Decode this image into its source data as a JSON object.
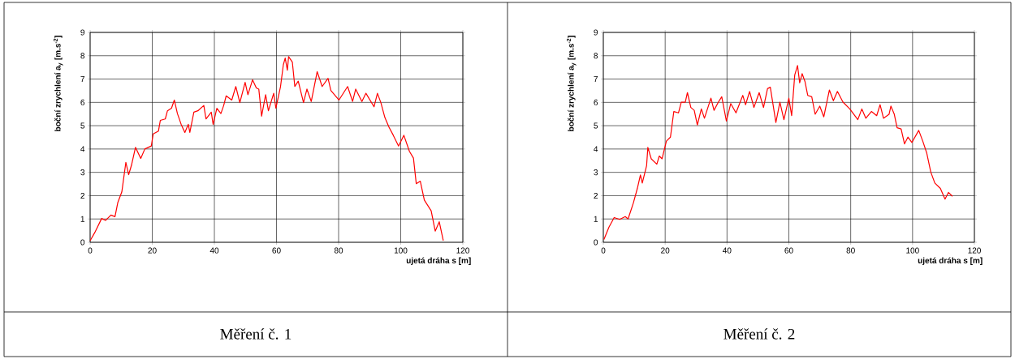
{
  "chart_data": [
    {
      "type": "line",
      "ylabel": "boční zrychlení a$_{y}$  [m.s$^{-2}$]",
      "xlabel": "ujetá dráha s [m]",
      "color": "#ff0000",
      "xlim": [
        0,
        120
      ],
      "ylim": [
        0,
        9
      ],
      "xticks": [
        0,
        20,
        40,
        60,
        80,
        100,
        120
      ],
      "yticks": [
        0,
        1,
        2,
        3,
        4,
        5,
        6,
        7,
        8,
        9
      ],
      "grid": true,
      "annotations": [
        "Měření č. 1"
      ],
      "x": [
        0,
        1.5,
        3.7,
        5,
        6.7,
        8,
        8.9,
        10.2,
        11.5,
        12.4,
        13.3,
        14.6,
        16.3,
        17.6,
        19.7,
        20.3,
        22,
        22.6,
        24.2,
        24.9,
        26.2,
        27.1,
        28.1,
        29.3,
        30.5,
        31.6,
        32.1,
        33.4,
        34.7,
        36.6,
        37.3,
        39,
        39.6,
        40.8,
        42.1,
        43,
        43.8,
        45.6,
        46.9,
        48.2,
        49.9,
        50.8,
        52.3,
        53.5,
        54.3,
        55.2,
        56.5,
        57.4,
        59.1,
        59.8,
        61.3,
        62.2,
        62.8,
        63.5,
        63.9,
        65.1,
        65.9,
        67,
        68.7,
        69.8,
        71.2,
        73.1,
        74.7,
        76.6,
        77.5,
        80.1,
        82.9,
        84.5,
        85.5,
        87.5,
        88.8,
        91.4,
        92.5,
        93.6,
        94.9,
        96.2,
        97.6,
        99.3,
        101,
        102.8,
        104.1,
        105,
        106.3,
        107.6,
        109.8,
        111.1,
        112.4,
        113.7
      ],
      "values": [
        0.07,
        0.42,
        1.02,
        0.94,
        1.17,
        1.1,
        1.7,
        2.16,
        3.43,
        2.9,
        3.3,
        4.07,
        3.6,
        4.0,
        4.13,
        4.65,
        4.77,
        5.23,
        5.29,
        5.64,
        5.75,
        6.1,
        5.52,
        5.06,
        4.71,
        5.06,
        4.71,
        5.58,
        5.64,
        5.87,
        5.29,
        5.58,
        5.06,
        5.75,
        5.52,
        5.87,
        6.28,
        6.1,
        6.68,
        5.99,
        6.86,
        6.33,
        6.97,
        6.62,
        6.57,
        5.41,
        6.33,
        5.64,
        6.39,
        5.75,
        6.68,
        7.61,
        7.9,
        7.38,
        7.96,
        7.73,
        6.68,
        6.91,
        5.99,
        6.57,
        6.04,
        7.32,
        6.68,
        7.03,
        6.51,
        6.1,
        6.68,
        6.04,
        6.57,
        6.04,
        6.39,
        5.81,
        6.39,
        5.99,
        5.35,
        4.94,
        4.59,
        4.13,
        4.59,
        3.9,
        3.61,
        2.51,
        2.62,
        1.81,
        1.35,
        0.48,
        0.88,
        0.07
      ]
    },
    {
      "type": "line",
      "ylabel": "boční zrychlení a$_{y}$  [m.s$^{-2}$]",
      "xlabel": "ujetá dráha s [m]",
      "color": "#ff0000",
      "xlim": [
        0,
        120
      ],
      "ylim": [
        0,
        9
      ],
      "xticks": [
        0,
        20,
        40,
        60,
        80,
        100,
        120
      ],
      "yticks": [
        0,
        1,
        2,
        3,
        4,
        5,
        6,
        7,
        8,
        9
      ],
      "grid": true,
      "annotations": [
        "Měření č. 2"
      ],
      "x": [
        0.2,
        1.8,
        3.5,
        5.3,
        7.1,
        8,
        9.7,
        11,
        12,
        12.6,
        14,
        14.4,
        15.5,
        17.3,
        18.1,
        19,
        20.4,
        21.7,
        22.8,
        24.3,
        25.2,
        26.5,
        27.2,
        28.3,
        29.4,
        30.4,
        31.7,
        32.7,
        34.8,
        35.8,
        37.2,
        38.3,
        39.8,
        41.2,
        42.9,
        45.1,
        46,
        47.3,
        48.7,
        50.4,
        51.8,
        53.1,
        54,
        55.8,
        57.1,
        58.4,
        60,
        60.9,
        61.9,
        62.8,
        63.5,
        64.3,
        65.2,
        66.1,
        67.4,
        68.5,
        70,
        71.3,
        73.1,
        74.4,
        75.7,
        77.5,
        79.7,
        82.3,
        83.6,
        84.9,
        86.7,
        88.4,
        89.5,
        90.6,
        92.4,
        93,
        94.1,
        95,
        96.3,
        97.4,
        98.5,
        99.8,
        102,
        103.3,
        104.6,
        105.9,
        107.2,
        109,
        110.5,
        111.6,
        112.9
      ],
      "values": [
        0.12,
        0.64,
        1.06,
        0.98,
        1.1,
        1.0,
        1.68,
        2.31,
        2.89,
        2.54,
        3.29,
        4.07,
        3.58,
        3.35,
        3.7,
        3.58,
        4.34,
        4.51,
        5.61,
        5.55,
        6.01,
        6.01,
        6.42,
        5.78,
        5.66,
        5.03,
        5.72,
        5.32,
        6.18,
        5.66,
        6.01,
        6.24,
        5.2,
        5.95,
        5.55,
        6.3,
        5.9,
        6.47,
        5.78,
        6.42,
        5.78,
        6.59,
        6.65,
        5.14,
        6.01,
        5.26,
        6.18,
        5.43,
        7.17,
        7.58,
        6.84,
        7.23,
        6.9,
        6.3,
        6.24,
        5.49,
        5.84,
        5.38,
        6.53,
        6.07,
        6.47,
        6.01,
        5.72,
        5.26,
        5.72,
        5.32,
        5.61,
        5.43,
        5.9,
        5.32,
        5.49,
        5.84,
        5.49,
        4.91,
        4.86,
        4.22,
        4.51,
        4.28,
        4.8,
        4.34,
        3.82,
        3.01,
        2.54,
        2.31,
        1.85,
        2.14,
        1.97
      ]
    }
  ]
}
